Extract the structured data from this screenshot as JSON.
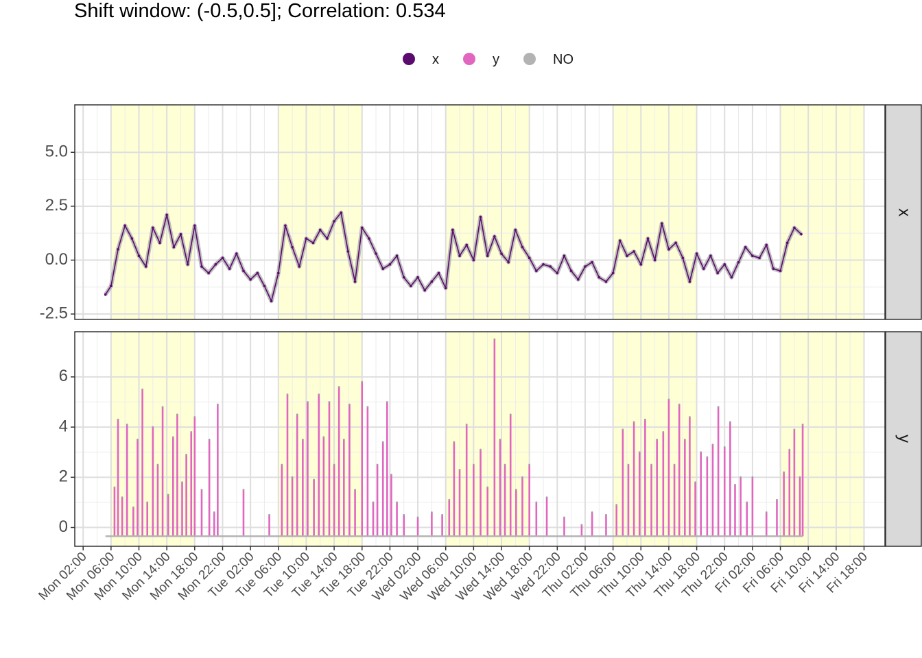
{
  "chart_data": {
    "type": "line",
    "title": "Shift window: (-0.5,0.5]; Correlation: 0.534",
    "legend": {
      "placement": "top",
      "entries": [
        {
          "label": "x",
          "color": "#5B0A6E"
        },
        {
          "label": "y",
          "color": "#E066C0"
        },
        {
          "label": "NO",
          "color": "#B3B3B3"
        }
      ]
    },
    "x_axis": {
      "unit": "hours since Mon 00:00",
      "range": [
        0.8,
        117.0
      ],
      "tick_hours": [
        2,
        6,
        10,
        14,
        18,
        22,
        26,
        30,
        34,
        38,
        42,
        46,
        50,
        54,
        58,
        62,
        66,
        70,
        74,
        78,
        82,
        86,
        90,
        94,
        98,
        102,
        106,
        110,
        114
      ],
      "tick_labels": [
        "Mon 02:00",
        "Mon 06:00",
        "Mon 10:00",
        "Mon 14:00",
        "Mon 18:00",
        "Mon 22:00",
        "Tue 02:00",
        "Tue 06:00",
        "Tue 10:00",
        "Tue 14:00",
        "Tue 18:00",
        "Tue 22:00",
        "Wed 02:00",
        "Wed 06:00",
        "Wed 10:00",
        "Wed 14:00",
        "Wed 18:00",
        "Wed 22:00",
        "Thu 02:00",
        "Thu 06:00",
        "Thu 10:00",
        "Thu 14:00",
        "Thu 18:00",
        "Thu 22:00",
        "Fri 02:00",
        "Fri 06:00",
        "Fri 10:00",
        "Fri 14:00",
        "Fri 18:00"
      ]
    },
    "shaded_periods": [
      [
        6,
        18
      ],
      [
        30,
        42
      ],
      [
        54,
        66
      ],
      [
        78,
        90
      ],
      [
        102,
        114
      ]
    ],
    "shade_color": "#FFFFD6",
    "facets": [
      {
        "strip": "x",
        "ylim": [
          -2.75,
          7.2
        ],
        "y_ticks": [
          -2.5,
          0.0,
          2.5,
          5.0
        ],
        "y_tick_labels": [
          "-2.5",
          "0.0",
          "2.5",
          "5.0"
        ],
        "series": [
          {
            "name": "x",
            "color": "#5B0A6E",
            "points": [
              [
                5.2,
                -1.6
              ],
              [
                6.0,
                -1.2
              ],
              [
                7.0,
                0.5
              ],
              [
                8.0,
                1.6
              ],
              [
                9.0,
                1.0
              ],
              [
                10.0,
                0.2
              ],
              [
                11.0,
                -0.3
              ],
              [
                12.0,
                1.5
              ],
              [
                13.0,
                0.8
              ],
              [
                14.0,
                2.1
              ],
              [
                15.0,
                0.6
              ],
              [
                16.0,
                1.2
              ],
              [
                17.0,
                -0.2
              ],
              [
                18.0,
                1.6
              ],
              [
                19.0,
                -0.3
              ],
              [
                20.0,
                -0.6
              ],
              [
                21.0,
                -0.2
              ],
              [
                22.0,
                0.1
              ],
              [
                23.0,
                -0.4
              ],
              [
                24.0,
                0.3
              ],
              [
                25.0,
                -0.5
              ],
              [
                26.0,
                -0.9
              ],
              [
                27.0,
                -0.6
              ],
              [
                28.0,
                -1.2
              ],
              [
                29.0,
                -1.9
              ],
              [
                30.0,
                -0.6
              ],
              [
                31.0,
                1.6
              ],
              [
                32.0,
                0.6
              ],
              [
                33.0,
                -0.3
              ],
              [
                34.0,
                1.0
              ],
              [
                35.0,
                0.8
              ],
              [
                36.0,
                1.4
              ],
              [
                37.0,
                1.0
              ],
              [
                38.0,
                1.8
              ],
              [
                39.0,
                2.2
              ],
              [
                40.0,
                0.4
              ],
              [
                41.0,
                -1.0
              ],
              [
                42.0,
                1.5
              ],
              [
                43.0,
                1.0
              ],
              [
                44.0,
                0.3
              ],
              [
                45.0,
                -0.4
              ],
              [
                46.0,
                -0.2
              ],
              [
                47.0,
                0.2
              ],
              [
                48.0,
                -0.8
              ],
              [
                49.0,
                -1.2
              ],
              [
                50.0,
                -0.8
              ],
              [
                51.0,
                -1.4
              ],
              [
                52.0,
                -1.0
              ],
              [
                53.0,
                -0.6
              ],
              [
                54.0,
                -1.3
              ],
              [
                55.0,
                1.4
              ],
              [
                56.0,
                0.2
              ],
              [
                57.0,
                0.7
              ],
              [
                58.0,
                0.0
              ],
              [
                59.0,
                2.0
              ],
              [
                60.0,
                0.2
              ],
              [
                61.0,
                1.1
              ],
              [
                62.0,
                0.3
              ],
              [
                63.0,
                -0.1
              ],
              [
                64.0,
                1.4
              ],
              [
                65.0,
                0.6
              ],
              [
                66.0,
                0.1
              ],
              [
                67.0,
                -0.5
              ],
              [
                68.0,
                -0.2
              ],
              [
                69.0,
                -0.3
              ],
              [
                70.0,
                -0.6
              ],
              [
                71.0,
                0.2
              ],
              [
                72.0,
                -0.5
              ],
              [
                73.0,
                -0.9
              ],
              [
                74.0,
                -0.3
              ],
              [
                75.0,
                -0.1
              ],
              [
                76.0,
                -0.8
              ],
              [
                77.0,
                -1.0
              ],
              [
                78.0,
                -0.6
              ],
              [
                79.0,
                0.9
              ],
              [
                80.0,
                0.2
              ],
              [
                81.0,
                0.4
              ],
              [
                82.0,
                -0.2
              ],
              [
                83.0,
                1.0
              ],
              [
                84.0,
                0.0
              ],
              [
                85.0,
                1.7
              ],
              [
                86.0,
                0.5
              ],
              [
                87.0,
                0.8
              ],
              [
                88.0,
                0.1
              ],
              [
                89.0,
                -1.0
              ],
              [
                90.0,
                0.3
              ],
              [
                91.0,
                -0.4
              ],
              [
                92.0,
                0.2
              ],
              [
                93.0,
                -0.6
              ],
              [
                94.0,
                -0.2
              ],
              [
                95.0,
                -0.8
              ],
              [
                96.0,
                -0.1
              ],
              [
                97.0,
                0.6
              ],
              [
                98.0,
                0.2
              ],
              [
                99.0,
                0.1
              ],
              [
                100.0,
                0.7
              ],
              [
                101.0,
                -0.4
              ],
              [
                102.0,
                -0.5
              ],
              [
                103.0,
                0.8
              ],
              [
                104.0,
                1.5
              ],
              [
                105.0,
                1.2
              ]
            ]
          }
        ]
      },
      {
        "strip": "y",
        "ylim": [
          -0.75,
          7.8
        ],
        "y_ticks": [
          0,
          2,
          4,
          6
        ],
        "y_tick_labels": [
          "0",
          "2",
          "4",
          "6"
        ],
        "series": [
          {
            "name": "y",
            "color": "#E066C0",
            "points": [
              [
                6.5,
                1.6
              ],
              [
                7.0,
                4.3
              ],
              [
                7.6,
                1.2
              ],
              [
                8.3,
                4.1
              ],
              [
                9.2,
                0.8
              ],
              [
                9.8,
                3.5
              ],
              [
                10.5,
                5.5
              ],
              [
                11.2,
                1.0
              ],
              [
                12.0,
                4.0
              ],
              [
                12.7,
                2.5
              ],
              [
                13.4,
                4.8
              ],
              [
                14.2,
                1.3
              ],
              [
                14.9,
                3.6
              ],
              [
                15.5,
                4.5
              ],
              [
                16.2,
                1.8
              ],
              [
                16.8,
                2.9
              ],
              [
                17.5,
                3.8
              ],
              [
                18.0,
                4.4
              ],
              [
                19.0,
                1.5
              ],
              [
                20.1,
                3.5
              ],
              [
                20.8,
                0.6
              ],
              [
                21.3,
                4.9
              ],
              [
                25.0,
                1.5
              ],
              [
                28.7,
                0.5
              ],
              [
                30.5,
                2.5
              ],
              [
                31.3,
                5.3
              ],
              [
                32.0,
                2.0
              ],
              [
                32.7,
                4.5
              ],
              [
                33.5,
                3.5
              ],
              [
                34.2,
                5.0
              ],
              [
                35.1,
                1.9
              ],
              [
                35.8,
                5.3
              ],
              [
                36.5,
                3.6
              ],
              [
                37.3,
                5.0
              ],
              [
                38.0,
                2.5
              ],
              [
                38.7,
                5.6
              ],
              [
                39.4,
                3.5
              ],
              [
                40.2,
                4.9
              ],
              [
                41.0,
                1.5
              ],
              [
                42.0,
                5.8
              ],
              [
                42.8,
                4.8
              ],
              [
                43.6,
                1.0
              ],
              [
                44.2,
                2.5
              ],
              [
                45.0,
                3.4
              ],
              [
                45.6,
                5.0
              ],
              [
                46.2,
                2.1
              ],
              [
                47.0,
                1.0
              ],
              [
                48.0,
                0.5
              ],
              [
                50.0,
                0.4
              ],
              [
                52.0,
                0.6
              ],
              [
                53.5,
                0.5
              ],
              [
                54.5,
                1.1
              ],
              [
                55.2,
                3.4
              ],
              [
                56.0,
                2.3
              ],
              [
                57.0,
                4.1
              ],
              [
                58.0,
                2.5
              ],
              [
                59.0,
                3.1
              ],
              [
                60.0,
                1.6
              ],
              [
                61.0,
                7.5
              ],
              [
                61.8,
                3.5
              ],
              [
                62.5,
                2.5
              ],
              [
                63.3,
                4.5
              ],
              [
                64.1,
                1.5
              ],
              [
                65.0,
                2.0
              ],
              [
                66.0,
                2.5
              ],
              [
                67.0,
                1.0
              ],
              [
                68.5,
                1.2
              ],
              [
                71.0,
                0.4
              ],
              [
                73.5,
                0.1
              ],
              [
                75.0,
                0.6
              ],
              [
                77.0,
                0.5
              ],
              [
                78.5,
                0.9
              ],
              [
                79.4,
                3.9
              ],
              [
                80.2,
                2.5
              ],
              [
                81.0,
                4.2
              ],
              [
                81.8,
                3.0
              ],
              [
                82.6,
                4.3
              ],
              [
                83.5,
                2.5
              ],
              [
                84.3,
                3.5
              ],
              [
                85.2,
                3.8
              ],
              [
                86.0,
                5.1
              ],
              [
                86.8,
                2.5
              ],
              [
                87.5,
                4.9
              ],
              [
                88.3,
                3.5
              ],
              [
                89.0,
                4.4
              ],
              [
                89.8,
                1.8
              ],
              [
                90.6,
                3.0
              ],
              [
                91.5,
                2.8
              ],
              [
                92.3,
                3.3
              ],
              [
                93.1,
                4.8
              ],
              [
                94.0,
                3.2
              ],
              [
                94.8,
                4.2
              ],
              [
                95.5,
                1.7
              ],
              [
                96.3,
                2.0
              ],
              [
                97.2,
                1.0
              ],
              [
                98.0,
                2.0
              ],
              [
                100.0,
                0.6
              ],
              [
                101.5,
                1.1
              ],
              [
                102.5,
                2.2
              ],
              [
                103.3,
                3.1
              ],
              [
                104.0,
                3.9
              ],
              [
                104.8,
                2.0
              ],
              [
                105.2,
                4.1
              ]
            ]
          },
          {
            "name": "NO",
            "color": "#B3B3B3",
            "points": [
              [
                5.2,
                -0.35
              ],
              [
                105.2,
                -0.35
              ]
            ]
          }
        ]
      }
    ]
  }
}
